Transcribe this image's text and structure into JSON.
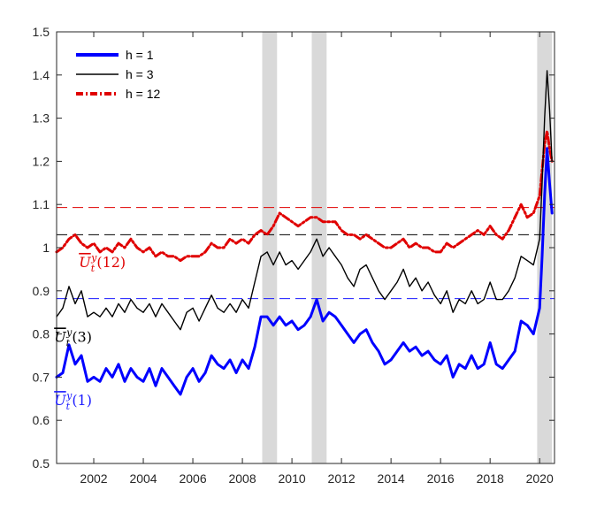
{
  "chart_data": {
    "type": "line",
    "title": "",
    "xlabel": "",
    "ylabel": "",
    "xlim": [
      2000.5,
      2020.6
    ],
    "ylim": [
      0.5,
      1.5
    ],
    "grid": false,
    "legend_position": "top-left",
    "x_ticks": [
      2002,
      2004,
      2006,
      2008,
      2010,
      2012,
      2014,
      2016,
      2018,
      2020
    ],
    "x_tick_labels": [
      "2002",
      "2004",
      "2006",
      "2008",
      "2010",
      "2012",
      "2014",
      "2016",
      "2018",
      "2020"
    ],
    "y_ticks": [
      0.5,
      0.6,
      0.7,
      0.8,
      0.9,
      1.0,
      1.1,
      1.2,
      1.3,
      1.4,
      1.5
    ],
    "y_tick_labels": [
      "0.5",
      "0.6",
      "0.7",
      "0.8",
      "0.9",
      "1",
      "1.1",
      "1.2",
      "1.3",
      "1.4",
      "1.5"
    ],
    "recession_bands": [
      {
        "start": 2008.8,
        "end": 2009.4
      },
      {
        "start": 2010.8,
        "end": 2011.4
      },
      {
        "start": 2019.9,
        "end": 2020.5
      }
    ],
    "reference_lines": [
      {
        "series": "h = 12",
        "y": 1.093,
        "color": "#e00000"
      },
      {
        "series": "h = 3",
        "y": 1.03,
        "color": "#000000"
      },
      {
        "series": "h = 1",
        "y": 0.882,
        "color": "#1a1aff"
      }
    ],
    "annotations": [
      {
        "label": "U_t^y(12)",
        "x": 2001.4,
        "y": 0.955,
        "color": "#e00000"
      },
      {
        "label": "U_t^y(3)",
        "x": 2000.4,
        "y": 0.782,
        "color": "#000000"
      },
      {
        "label": "U_t^y(1)",
        "x": 2000.4,
        "y": 0.635,
        "color": "#1a1aff"
      }
    ],
    "series": [
      {
        "name": "h = 1",
        "color": "#0000ff",
        "style": "solid",
        "width": "thick",
        "x": [
          2000.5,
          2000.75,
          2001.0,
          2001.25,
          2001.5,
          2001.75,
          2002.0,
          2002.25,
          2002.5,
          2002.75,
          2003.0,
          2003.25,
          2003.5,
          2003.75,
          2004.0,
          2004.25,
          2004.5,
          2004.75,
          2005.0,
          2005.25,
          2005.5,
          2005.75,
          2006.0,
          2006.25,
          2006.5,
          2006.75,
          2007.0,
          2007.25,
          2007.5,
          2007.75,
          2008.0,
          2008.25,
          2008.5,
          2008.75,
          2009.0,
          2009.25,
          2009.5,
          2009.75,
          2010.0,
          2010.25,
          2010.5,
          2010.75,
          2011.0,
          2011.25,
          2011.5,
          2011.75,
          2012.0,
          2012.25,
          2012.5,
          2012.75,
          2013.0,
          2013.25,
          2013.5,
          2013.75,
          2014.0,
          2014.25,
          2014.5,
          2014.75,
          2015.0,
          2015.25,
          2015.5,
          2015.75,
          2016.0,
          2016.25,
          2016.5,
          2016.75,
          2017.0,
          2017.25,
          2017.5,
          2017.75,
          2018.0,
          2018.25,
          2018.5,
          2018.75,
          2019.0,
          2019.25,
          2019.5,
          2019.75,
          2020.0,
          2020.1,
          2020.2,
          2020.3,
          2020.4,
          2020.5
        ],
        "values": [
          0.7,
          0.71,
          0.775,
          0.73,
          0.75,
          0.69,
          0.7,
          0.69,
          0.72,
          0.7,
          0.73,
          0.69,
          0.72,
          0.7,
          0.69,
          0.72,
          0.68,
          0.72,
          0.7,
          0.68,
          0.66,
          0.7,
          0.72,
          0.69,
          0.71,
          0.75,
          0.73,
          0.72,
          0.74,
          0.71,
          0.74,
          0.72,
          0.77,
          0.84,
          0.84,
          0.82,
          0.84,
          0.82,
          0.83,
          0.81,
          0.82,
          0.84,
          0.88,
          0.83,
          0.85,
          0.84,
          0.82,
          0.8,
          0.78,
          0.8,
          0.81,
          0.78,
          0.76,
          0.73,
          0.74,
          0.76,
          0.78,
          0.76,
          0.77,
          0.75,
          0.76,
          0.74,
          0.73,
          0.75,
          0.7,
          0.73,
          0.72,
          0.75,
          0.72,
          0.73,
          0.78,
          0.73,
          0.72,
          0.74,
          0.76,
          0.83,
          0.82,
          0.8,
          0.86,
          0.98,
          1.12,
          1.23,
          1.15,
          1.08
        ]
      },
      {
        "name": "h = 3",
        "color": "#000000",
        "style": "solid",
        "width": "thin",
        "x": [
          2000.5,
          2000.75,
          2001.0,
          2001.25,
          2001.5,
          2001.75,
          2002.0,
          2002.25,
          2002.5,
          2002.75,
          2003.0,
          2003.25,
          2003.5,
          2003.75,
          2004.0,
          2004.25,
          2004.5,
          2004.75,
          2005.0,
          2005.25,
          2005.5,
          2005.75,
          2006.0,
          2006.25,
          2006.5,
          2006.75,
          2007.0,
          2007.25,
          2007.5,
          2007.75,
          2008.0,
          2008.25,
          2008.5,
          2008.75,
          2009.0,
          2009.25,
          2009.5,
          2009.75,
          2010.0,
          2010.25,
          2010.5,
          2010.75,
          2011.0,
          2011.25,
          2011.5,
          2011.75,
          2012.0,
          2012.25,
          2012.5,
          2012.75,
          2013.0,
          2013.25,
          2013.5,
          2013.75,
          2014.0,
          2014.25,
          2014.5,
          2014.75,
          2015.0,
          2015.25,
          2015.5,
          2015.75,
          2016.0,
          2016.25,
          2016.5,
          2016.75,
          2017.0,
          2017.25,
          2017.5,
          2017.75,
          2018.0,
          2018.25,
          2018.5,
          2018.75,
          2019.0,
          2019.25,
          2019.5,
          2019.75,
          2020.0,
          2020.1,
          2020.2,
          2020.3,
          2020.4,
          2020.5
        ],
        "values": [
          0.84,
          0.86,
          0.91,
          0.87,
          0.9,
          0.84,
          0.85,
          0.84,
          0.86,
          0.84,
          0.87,
          0.85,
          0.88,
          0.86,
          0.85,
          0.87,
          0.84,
          0.87,
          0.85,
          0.83,
          0.81,
          0.85,
          0.86,
          0.83,
          0.86,
          0.89,
          0.86,
          0.85,
          0.87,
          0.85,
          0.88,
          0.86,
          0.92,
          0.98,
          0.99,
          0.96,
          0.99,
          0.96,
          0.97,
          0.95,
          0.97,
          0.99,
          1.02,
          0.98,
          1.0,
          0.98,
          0.96,
          0.93,
          0.91,
          0.95,
          0.96,
          0.93,
          0.9,
          0.88,
          0.9,
          0.92,
          0.95,
          0.91,
          0.93,
          0.9,
          0.92,
          0.89,
          0.87,
          0.9,
          0.85,
          0.88,
          0.87,
          0.9,
          0.87,
          0.88,
          0.92,
          0.88,
          0.88,
          0.9,
          0.93,
          0.98,
          0.97,
          0.96,
          1.02,
          1.15,
          1.3,
          1.41,
          1.32,
          1.2
        ]
      },
      {
        "name": "h = 12",
        "color": "#e00000",
        "style": "dashdot",
        "width": "thick",
        "x": [
          2000.5,
          2000.75,
          2001.0,
          2001.25,
          2001.5,
          2001.75,
          2002.0,
          2002.25,
          2002.5,
          2002.75,
          2003.0,
          2003.25,
          2003.5,
          2003.75,
          2004.0,
          2004.25,
          2004.5,
          2004.75,
          2005.0,
          2005.25,
          2005.5,
          2005.75,
          2006.0,
          2006.25,
          2006.5,
          2006.75,
          2007.0,
          2007.25,
          2007.5,
          2007.75,
          2008.0,
          2008.25,
          2008.5,
          2008.75,
          2009.0,
          2009.25,
          2009.5,
          2009.75,
          2010.0,
          2010.25,
          2010.5,
          2010.75,
          2011.0,
          2011.25,
          2011.5,
          2011.75,
          2012.0,
          2012.25,
          2012.5,
          2012.75,
          2013.0,
          2013.25,
          2013.5,
          2013.75,
          2014.0,
          2014.25,
          2014.5,
          2014.75,
          2015.0,
          2015.25,
          2015.5,
          2015.75,
          2016.0,
          2016.25,
          2016.5,
          2016.75,
          2017.0,
          2017.25,
          2017.5,
          2017.75,
          2018.0,
          2018.25,
          2018.5,
          2018.75,
          2019.0,
          2019.25,
          2019.5,
          2019.75,
          2020.0,
          2020.1,
          2020.2,
          2020.3,
          2020.4,
          2020.5
        ],
        "values": [
          0.99,
          1.0,
          1.02,
          1.03,
          1.01,
          1.0,
          1.01,
          0.99,
          1.0,
          0.99,
          1.01,
          1.0,
          1.02,
          1.0,
          0.99,
          1.0,
          0.98,
          0.99,
          0.98,
          0.98,
          0.97,
          0.98,
          0.98,
          0.98,
          0.99,
          1.01,
          1.0,
          1.0,
          1.02,
          1.01,
          1.02,
          1.01,
          1.03,
          1.04,
          1.03,
          1.05,
          1.08,
          1.07,
          1.06,
          1.05,
          1.06,
          1.07,
          1.07,
          1.06,
          1.06,
          1.06,
          1.04,
          1.03,
          1.03,
          1.02,
          1.03,
          1.02,
          1.01,
          1.0,
          1.0,
          1.01,
          1.02,
          1.0,
          1.01,
          1.0,
          1.0,
          0.99,
          0.99,
          1.01,
          1.0,
          1.01,
          1.02,
          1.03,
          1.04,
          1.03,
          1.05,
          1.03,
          1.02,
          1.04,
          1.07,
          1.1,
          1.07,
          1.08,
          1.12,
          1.18,
          1.24,
          1.27,
          1.23,
          1.2
        ]
      }
    ]
  }
}
